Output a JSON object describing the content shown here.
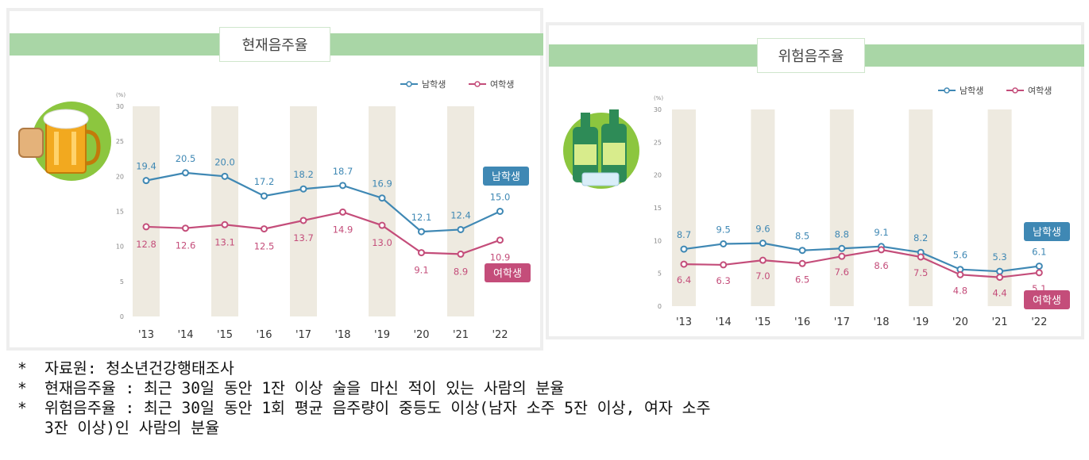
{
  "chart_data": [
    {
      "type": "line",
      "title": "현재음주율",
      "unit_label": "(%)",
      "categories": [
        "'13",
        "'14",
        "'15",
        "'16",
        "'17",
        "'18",
        "'19",
        "'20",
        "'21",
        "'22"
      ],
      "ylim": [
        0,
        30
      ],
      "yticks": [
        0,
        5,
        10,
        15,
        20,
        25,
        30
      ],
      "series": [
        {
          "name": "남학생",
          "color": "#3f88b4",
          "values": [
            19.4,
            20.5,
            20.0,
            17.2,
            18.2,
            18.7,
            16.9,
            12.1,
            12.4,
            15.0
          ],
          "value_labels": [
            "19.4",
            "20.5",
            "20.0",
            "17.2",
            "18.2",
            "18.7",
            "16.9",
            "12.1",
            "12.4",
            "15.0"
          ]
        },
        {
          "name": "여학생",
          "color": "#c44d7a",
          "values": [
            12.8,
            12.6,
            13.1,
            12.5,
            13.7,
            14.9,
            13.0,
            9.1,
            8.9,
            10.9
          ],
          "value_labels": [
            "12.8",
            "12.6",
            "13.1",
            "12.5",
            "13.7",
            "14.9",
            "13.0",
            "9.1",
            "8.9",
            "10.9"
          ]
        }
      ],
      "end_tags": {
        "male": "남학생",
        "female": "여학생"
      },
      "legend": {
        "placement": "top-right",
        "entries": [
          "남학생",
          "여학생"
        ]
      },
      "icon": "beer-mug-icon"
    },
    {
      "type": "line",
      "title": "위험음주율",
      "unit_label": "(%)",
      "categories": [
        "'13",
        "'14",
        "'15",
        "'16",
        "'17",
        "'18",
        "'19",
        "'20",
        "'21",
        "'22"
      ],
      "ylim": [
        0,
        30
      ],
      "yticks": [
        0,
        5,
        10,
        15,
        20,
        25,
        30
      ],
      "series": [
        {
          "name": "남학생",
          "color": "#3f88b4",
          "values": [
            8.7,
            9.5,
            9.6,
            8.5,
            8.8,
            9.1,
            8.2,
            5.6,
            5.3,
            6.1
          ],
          "value_labels": [
            "8.7",
            "9.5",
            "9.6",
            "8.5",
            "8.8",
            "9.1",
            "8.2",
            "5.6",
            "5.3",
            "6.1"
          ]
        },
        {
          "name": "여학생",
          "color": "#c44d7a",
          "values": [
            6.4,
            6.3,
            7.0,
            6.5,
            7.6,
            8.6,
            7.5,
            4.8,
            4.4,
            5.1
          ],
          "value_labels": [
            "6.4",
            "6.3",
            "7.0",
            "6.5",
            "7.6",
            "8.6",
            "7.5",
            "4.8",
            "4.4",
            "5.1"
          ]
        }
      ],
      "end_tags": {
        "male": "남학생",
        "female": "여학생"
      },
      "legend": {
        "placement": "top-right",
        "entries": [
          "남학생",
          "여학생"
        ]
      },
      "icon": "soju-bottles-icon"
    }
  ],
  "notes": [
    {
      "star": "*",
      "text": "자료원: 청소년건강행태조사"
    },
    {
      "star": "*",
      "text": "현재음주율 : 최근 30일 동안 1잔 이상 술을 마신 적이 있는 사람의 분율"
    },
    {
      "star": "*",
      "text": "위험음주율 : 최근 30일 동안 1회 평균 음주량이 중등도 이상(남자 소주 5잔 이상, 여자 소주"
    },
    {
      "star": "",
      "text": "3잔 이상)인 사람의 분율"
    }
  ],
  "colors": {
    "band": "#a9d6a6",
    "column_stripe": "#eeeae0",
    "male": "#3f88b4",
    "female": "#c44d7a"
  }
}
